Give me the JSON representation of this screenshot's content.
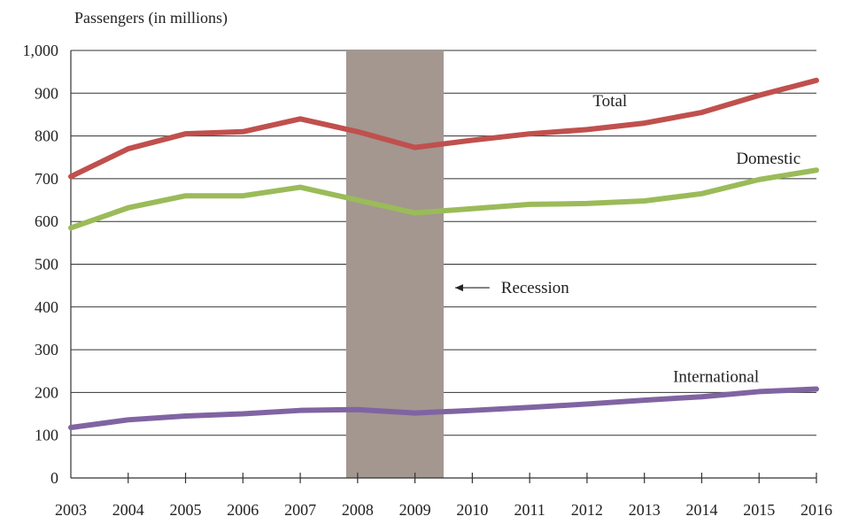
{
  "chart_data": {
    "type": "line",
    "title": "",
    "ylabel": "Passengers (in millions)",
    "xlabel": "",
    "x": [
      "2003",
      "2004",
      "2005",
      "2006",
      "2007",
      "2008",
      "2009",
      "2010",
      "2011",
      "2012",
      "2013",
      "2014",
      "2015",
      "2016"
    ],
    "ylim": [
      0,
      1000
    ],
    "yticks": [
      "0",
      "100",
      "200",
      "300",
      "400",
      "500",
      "600",
      "700",
      "800",
      "900",
      "1,000"
    ],
    "grid": "horizontal",
    "legend": "none",
    "series": [
      {
        "name": "Total",
        "color": "#c0504d",
        "values": [
          705,
          770,
          805,
          810,
          840,
          810,
          773,
          790,
          805,
          815,
          830,
          855,
          895,
          930
        ]
      },
      {
        "name": "Domestic",
        "color": "#9bbb59",
        "values": [
          585,
          632,
          660,
          660,
          680,
          650,
          620,
          630,
          640,
          642,
          648,
          665,
          698,
          720
        ]
      },
      {
        "name": "International",
        "color": "#8064a2",
        "values": [
          118,
          136,
          145,
          150,
          158,
          160,
          152,
          158,
          165,
          173,
          182,
          190,
          202,
          208
        ]
      }
    ],
    "shaded_region": {
      "start": 2007.8,
      "end": 2009.5,
      "label": "Recession",
      "color": "#a39790"
    }
  }
}
